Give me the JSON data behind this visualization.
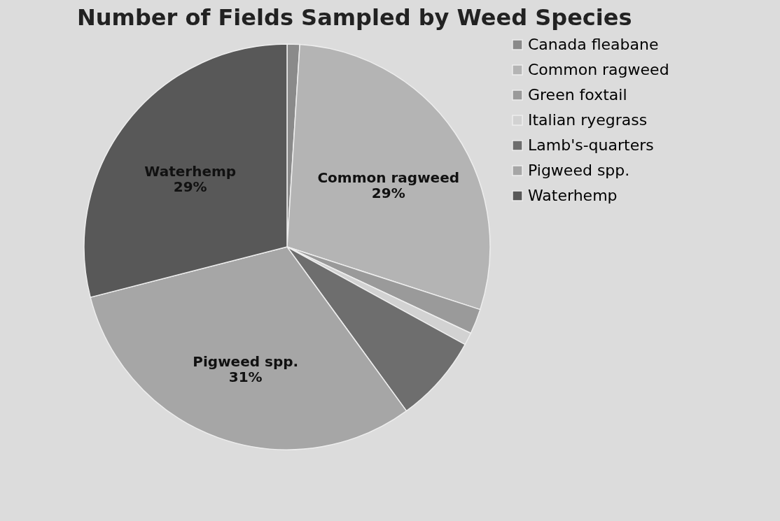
{
  "chart_data": {
    "type": "pie",
    "title": "Number of Fields Sampled by Weed Species",
    "categories": [
      "Canada fleabane",
      "Common ragweed",
      "Green foxtail",
      "Italian ryegrass",
      "Lamb's-quarters",
      "Pigweed spp.",
      "Waterhemp"
    ],
    "values": [
      1,
      29,
      2,
      1,
      7,
      31,
      29
    ],
    "value_labels": [
      null,
      "29%",
      null,
      null,
      null,
      "31%",
      "29%"
    ],
    "colors": [
      "#8a8a8a",
      "#b4b4b4",
      "#9a9a9a",
      "#d2d2d2",
      "#6e6e6e",
      "#a6a6a6",
      "#585858"
    ],
    "legend": "right"
  }
}
